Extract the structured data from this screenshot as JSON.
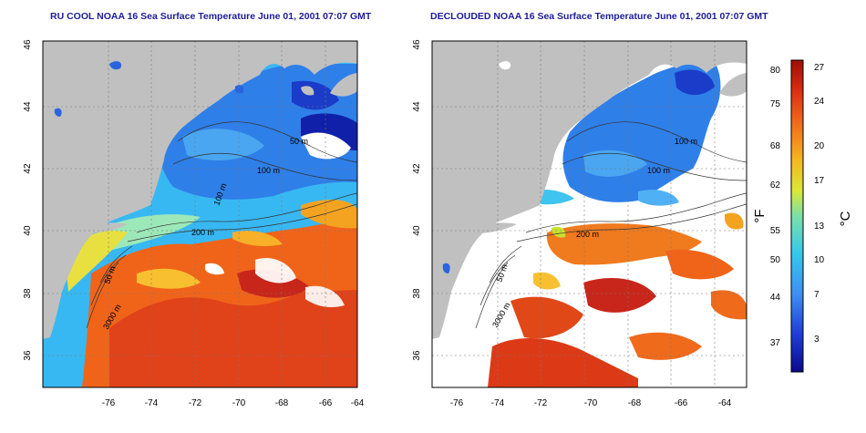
{
  "maps": [
    {
      "title": "RU COOL NOAA 16 Sea Surface Temperature June 01, 2001 07:07 GMT",
      "type": "raw",
      "xticks": [
        "-76",
        "-74",
        "-72",
        "-70",
        "-68",
        "-66",
        "-64"
      ],
      "yticks": [
        "46",
        "44",
        "42",
        "40",
        "38",
        "36"
      ],
      "contour_labels": [
        "50 m",
        "100 m",
        "200 m",
        "50 m",
        "3000 m",
        "100 m"
      ]
    },
    {
      "title": "DECLOUDED NOAA 16 Sea Surface Temperature June 01, 2001 07:07 GMT",
      "type": "declouded",
      "xticks": [
        "-76",
        "-74",
        "-72",
        "-70",
        "-68",
        "-66",
        "-64"
      ],
      "yticks": [
        "46",
        "44",
        "42",
        "40",
        "38",
        "36"
      ],
      "contour_labels": [
        "100 m",
        "100 m",
        "200 m",
        "50 m",
        "3000 m"
      ]
    }
  ],
  "colorbar": {
    "fahrenheit_labels": [
      "80",
      "75",
      "68",
      "62",
      "55",
      "50",
      "44",
      "37"
    ],
    "celsius_labels": [
      "27",
      "24",
      "20",
      "17",
      "13",
      "10",
      "7",
      "3"
    ],
    "fahrenheit_unit": "°F",
    "celsius_unit": "°C"
  },
  "colors": {
    "land": "#c0c0c0",
    "cloud": "#ffffff",
    "title": "#1c1c9a"
  }
}
